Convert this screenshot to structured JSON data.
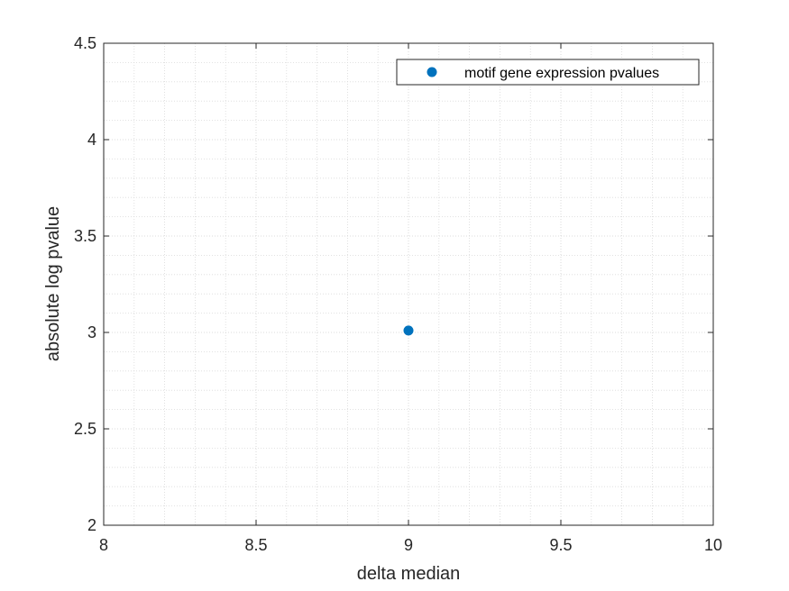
{
  "chart_data": {
    "type": "scatter",
    "title": "",
    "xlabel": "delta median",
    "ylabel": "absolute log pvalue",
    "xlim": [
      8,
      10
    ],
    "ylim": [
      2,
      4.5
    ],
    "xticks": [
      8,
      8.5,
      9,
      9.5,
      10
    ],
    "yticks": [
      2,
      2.5,
      3,
      3.5,
      4,
      4.5
    ],
    "xtick_labels": [
      "8",
      "8.5",
      "9",
      "9.5",
      "10"
    ],
    "ytick_labels": [
      "2",
      "2.5",
      "3",
      "3.5",
      "4",
      "4.5"
    ],
    "grid": true,
    "minor_grid": true,
    "legend_location": "top-right",
    "series": [
      {
        "name": "motif gene expression pvalues",
        "color": "#0072BD",
        "marker": "circle",
        "points": [
          {
            "x": 9,
            "y": 3.01
          }
        ]
      }
    ]
  }
}
